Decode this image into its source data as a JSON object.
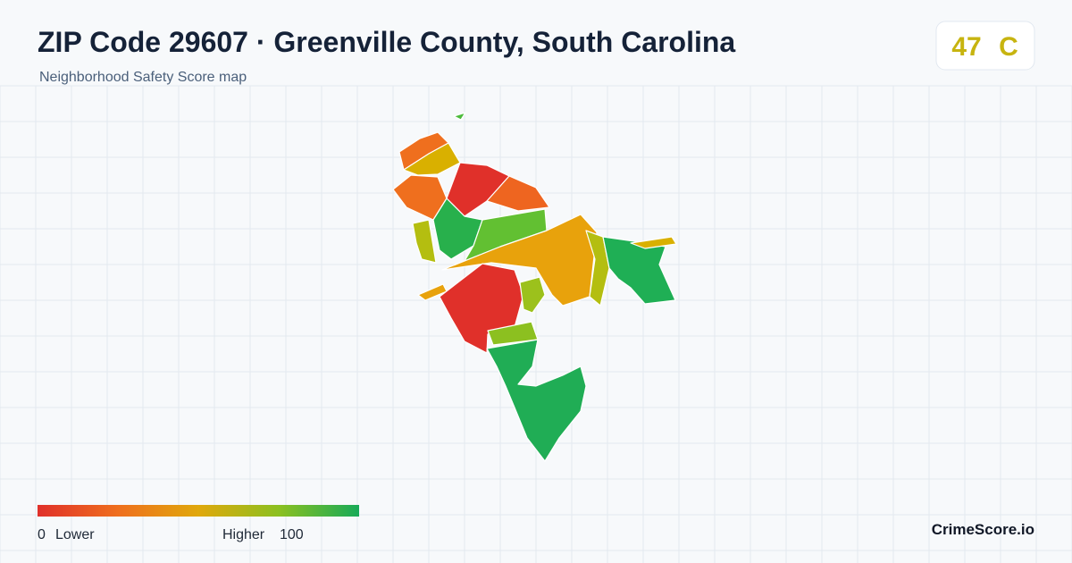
{
  "header": {
    "title": "ZIP Code 29607 · Greenville County, South Carolina",
    "subtitle": "Neighborhood Safety Score map"
  },
  "score": {
    "value": 47,
    "grade": "C"
  },
  "legend": {
    "min": 0,
    "min_label": "Lower",
    "max_label": "Higher",
    "max": 100
  },
  "brand": "CrimeScore.io"
}
